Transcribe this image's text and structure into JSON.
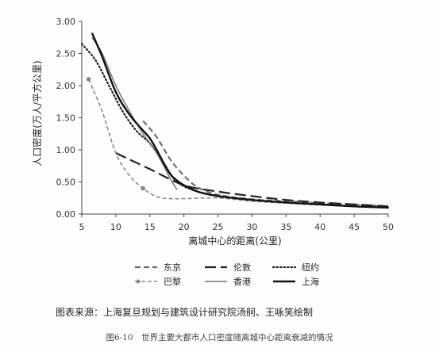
{
  "chart_data": {
    "type": "line",
    "title": "",
    "xlabel": "离城中心的距离(公里)",
    "ylabel": "人口密度(万人/平方公里)",
    "xlim": [
      5,
      50
    ],
    "ylim": [
      0,
      3.0
    ],
    "x_ticks": [
      "5",
      "10",
      "15",
      "20",
      "25",
      "30",
      "35",
      "40",
      "45",
      "50"
    ],
    "y_ticks": [
      "0.00",
      "0.50",
      "1.00",
      "1.50",
      "2.00",
      "2.50",
      "3.00"
    ],
    "grid": false,
    "legend_position": "bottom",
    "series": [
      {
        "name": "东京",
        "style": "dashed",
        "color": "#6e6e6e",
        "x": [
          14,
          16,
          18,
          20,
          22,
          25,
          30,
          35,
          40,
          45,
          50
        ],
        "y": [
          1.45,
          1.2,
          0.85,
          0.6,
          0.42,
          0.3,
          0.23,
          0.2,
          0.17,
          0.15,
          0.12
        ]
      },
      {
        "name": "伦敦",
        "style": "long-dash",
        "color": "#222222",
        "x": [
          10,
          15,
          20,
          25,
          30,
          35,
          40,
          45,
          50
        ],
        "y": [
          0.95,
          0.7,
          0.45,
          0.35,
          0.28,
          0.22,
          0.18,
          0.15,
          0.12
        ]
      },
      {
        "name": "纽约",
        "style": "dotted",
        "color": "#222222",
        "x": [
          5,
          7,
          9,
          11,
          13,
          15,
          17,
          19,
          22,
          25,
          30,
          35,
          40,
          45,
          50
        ],
        "y": [
          2.65,
          2.4,
          2.0,
          1.6,
          1.3,
          1.1,
          0.8,
          0.5,
          0.35,
          0.28,
          0.22,
          0.18,
          0.15,
          0.12,
          0.1
        ]
      },
      {
        "name": "巴黎",
        "style": "dashed-marker",
        "color": "#888888",
        "x": [
          6,
          8,
          10,
          12,
          14,
          16,
          18,
          20,
          25,
          30,
          35,
          40,
          45,
          50
        ],
        "y": [
          2.1,
          1.6,
          0.95,
          0.6,
          0.4,
          0.27,
          0.24,
          0.24,
          0.25,
          0.2,
          0.17,
          0.14,
          0.12,
          0.1
        ],
        "markers_x": [
          6,
          14
        ],
        "markers_y": [
          2.1,
          0.4
        ]
      },
      {
        "name": "香港",
        "style": "solid-thin",
        "color": "#777777",
        "x": [
          6.5,
          8,
          10,
          12,
          14,
          16,
          18,
          19
        ],
        "y": [
          2.75,
          2.5,
          2.0,
          1.6,
          1.25,
          0.95,
          0.55,
          0.38
        ]
      },
      {
        "name": "上海",
        "style": "solid-thick",
        "color": "#111111",
        "x": [
          6.5,
          8,
          10,
          12,
          14,
          15,
          16,
          17,
          18,
          19,
          20,
          22,
          25,
          30,
          35,
          40,
          45,
          50
        ],
        "y": [
          2.82,
          2.45,
          1.9,
          1.55,
          1.3,
          1.18,
          1.0,
          0.8,
          0.62,
          0.52,
          0.45,
          0.35,
          0.28,
          0.22,
          0.18,
          0.15,
          0.12,
          0.1
        ]
      }
    ]
  },
  "source_note": "图表来源：上海复旦规划与建筑设计研究院汤舸、王咏笑绘制",
  "caption": "图6-10　世界主要大都市人口密度随离城中心距离衰减的情况"
}
